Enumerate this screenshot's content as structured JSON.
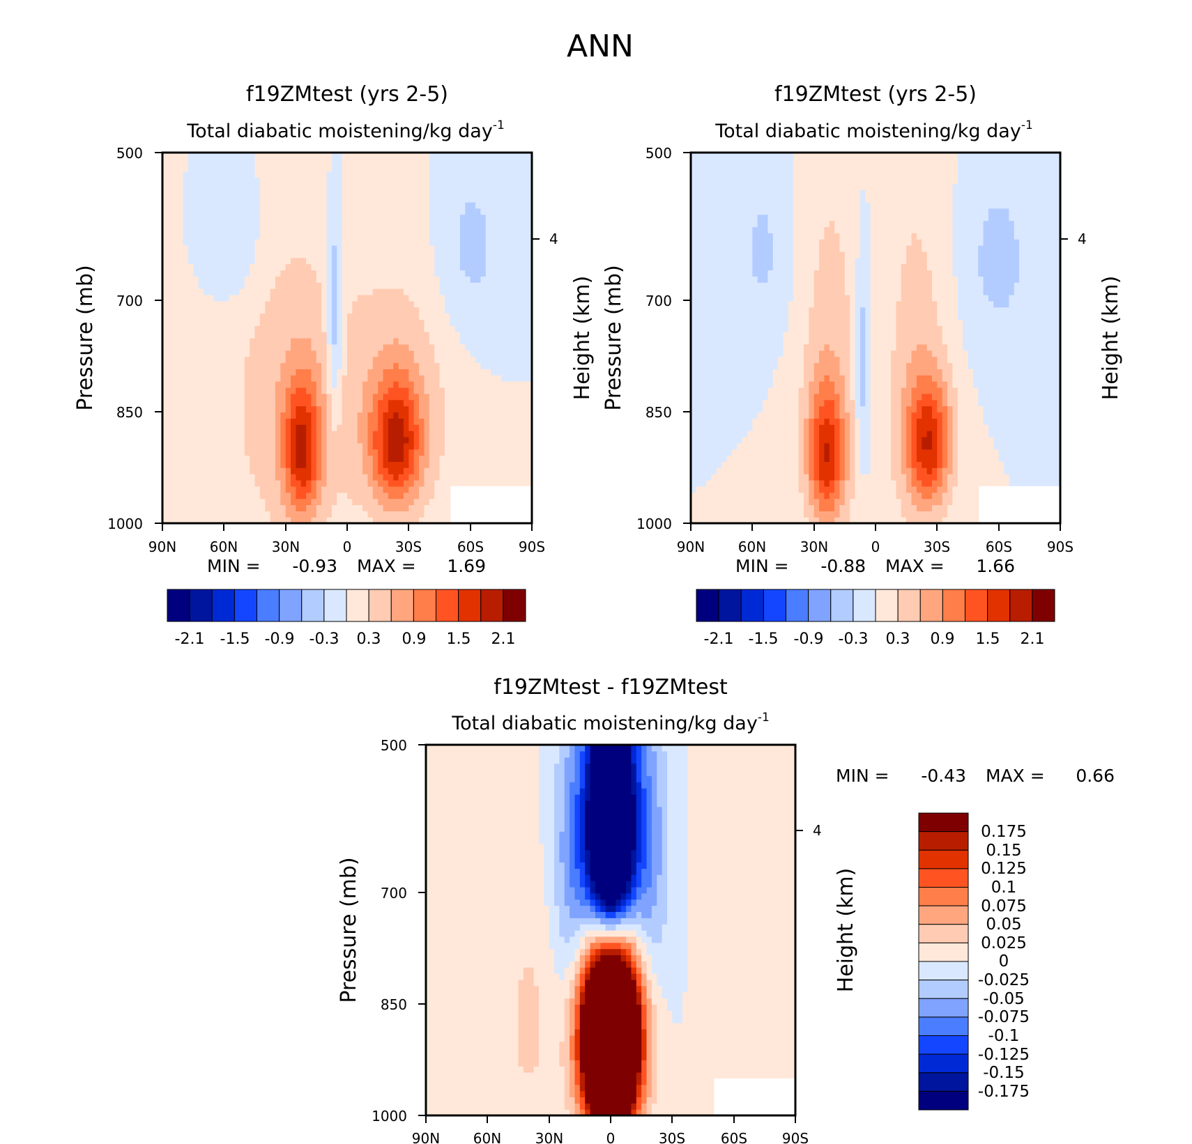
{
  "figure_title": "ANN",
  "colors": {
    "main_scale": [
      "#00007f",
      "#00159e",
      "#0029d6",
      "#1446ff",
      "#4a7dff",
      "#7fa3ff",
      "#b2ccff",
      "#d9e8ff",
      "#ffe8d9",
      "#ffcbb2",
      "#ffa67f",
      "#ff7e4a",
      "#ff5422",
      "#e23200",
      "#b81d00",
      "#7f0000"
    ],
    "diff_scale": [
      "#00007f",
      "#00159e",
      "#0029d6",
      "#1446ff",
      "#4a7dff",
      "#7fa3ff",
      "#b2ccff",
      "#d9e8ff",
      "#ffe8d9",
      "#ffcbb2",
      "#ffa67f",
      "#ff7e4a",
      "#ff5422",
      "#e23200",
      "#b81d00",
      "#7f0000"
    ]
  },
  "chart_data": [
    {
      "type": "heatmap",
      "id": "panel1",
      "title": "f19ZMtest (yrs 2-5)",
      "subtitle": "Total diabatic moistening/kg day",
      "subtitle_exponent": "-1",
      "ylabel": "Pressure (mb)",
      "y2label": "Height (km)",
      "y_ticks": [
        "500",
        "700",
        "850",
        "1000"
      ],
      "y_range": [
        1000,
        500
      ],
      "y2_ticks": [
        "4"
      ],
      "x_ticks": [
        "90N",
        "60N",
        "30N",
        "0",
        "30S",
        "60S",
        "90S"
      ],
      "x_range": [
        90,
        -90
      ],
      "stats": {
        "min_label": "MIN =",
        "min": "-0.93",
        "max_label": "MAX =",
        "max": "1.69"
      },
      "colorbar_labels": [
        "-2.1",
        "-1.5",
        "-0.9",
        "-0.3",
        "0.3",
        "0.9",
        "1.5",
        "2.1"
      ],
      "levels": [
        -2.1,
        -1.8,
        -1.5,
        -1.2,
        -0.9,
        -0.6,
        -0.3,
        0,
        0.3,
        0.6,
        0.9,
        1.2,
        1.5,
        1.8,
        2.1
      ],
      "features": [
        {
          "lat": 22,
          "p": 870,
          "dlat": 9,
          "dp": 110,
          "value": 1.5
        },
        {
          "lat": -24,
          "p": 860,
          "dlat": 12,
          "dp": 100,
          "value": 1.55
        },
        {
          "lat": 28,
          "p": 800,
          "dlat": 32,
          "dp": 260,
          "value": 0.5
        },
        {
          "lat": -26,
          "p": 800,
          "dlat": 28,
          "dp": 200,
          "value": 0.5
        },
        {
          "lat": 6,
          "p": 680,
          "dlat": 4,
          "dp": 140,
          "value": -0.75
        },
        {
          "lat": 55,
          "p": 580,
          "dlat": 14,
          "dp": 80,
          "value": -0.4
        },
        {
          "lat": -60,
          "p": 600,
          "dlat": 18,
          "dp": 110,
          "value": -0.4
        }
      ]
    },
    {
      "type": "heatmap",
      "id": "panel2",
      "title": "f19ZMtest (yrs 2-5)",
      "subtitle": "Total diabatic moistening/kg day",
      "subtitle_exponent": "-1",
      "ylabel": "Pressure (mb)",
      "y2label": "Height (km)",
      "y_ticks": [
        "500",
        "700",
        "850",
        "1000"
      ],
      "y_range": [
        1000,
        500
      ],
      "y2_ticks": [
        "4"
      ],
      "x_ticks": [
        "90N",
        "60N",
        "30N",
        "0",
        "30S",
        "60S",
        "90S"
      ],
      "x_range": [
        90,
        -90
      ],
      "stats": {
        "min_label": "MIN =",
        "min": "-0.88",
        "max_label": "MAX =",
        "max": "1.66"
      },
      "colorbar_labels": [
        "-2.1",
        "-1.5",
        "-0.9",
        "-0.3",
        "0.3",
        "0.9",
        "1.5",
        "2.1"
      ],
      "levels": [
        -2.1,
        -1.8,
        -1.5,
        -1.2,
        -0.9,
        -0.6,
        -0.3,
        0,
        0.3,
        0.6,
        0.9,
        1.2,
        1.5,
        1.8,
        2.1
      ],
      "features": [
        {
          "lat": 24,
          "p": 880,
          "dlat": 9,
          "dp": 110,
          "value": 1.45
        },
        {
          "lat": -26,
          "p": 860,
          "dlat": 11,
          "dp": 100,
          "value": 1.5
        },
        {
          "lat": 22,
          "p": 760,
          "dlat": 16,
          "dp": 300,
          "value": 0.45
        },
        {
          "lat": -20,
          "p": 760,
          "dlat": 16,
          "dp": 280,
          "value": 0.45
        },
        {
          "lat": 6,
          "p": 740,
          "dlat": 4,
          "dp": 160,
          "value": -0.6
        },
        {
          "lat": 55,
          "p": 600,
          "dlat": 14,
          "dp": 100,
          "value": -0.35
        },
        {
          "lat": -60,
          "p": 610,
          "dlat": 18,
          "dp": 110,
          "value": -0.4
        }
      ]
    },
    {
      "type": "heatmap",
      "id": "panel3",
      "title": "f19ZMtest - f19ZMtest",
      "subtitle": "Total diabatic moistening/kg day",
      "subtitle_exponent": "-1",
      "ylabel": "Pressure (mb)",
      "y2label": "Height (km)",
      "y_ticks": [
        "500",
        "700",
        "850",
        "1000"
      ],
      "y_range": [
        1000,
        500
      ],
      "y2_ticks": [
        "4"
      ],
      "x_ticks": [
        "90N",
        "60N",
        "30N",
        "0",
        "30S",
        "60S",
        "90S"
      ],
      "x_range": [
        90,
        -90
      ],
      "stats": {
        "min_label": "MIN =",
        "min": "-0.43",
        "max_label": "MAX =",
        "max": "0.66"
      },
      "colorbar_labels": [
        "0.175",
        "0.15",
        "0.125",
        "0.1",
        "0.075",
        "0.05",
        "0.025",
        "0",
        "-0.025",
        "-0.05",
        "-0.075",
        "-0.1",
        "-0.125",
        "-0.15",
        "-0.175"
      ],
      "levels": [
        -0.175,
        -0.15,
        -0.125,
        -0.1,
        -0.075,
        -0.05,
        -0.025,
        0,
        0.025,
        0.05,
        0.075,
        0.1,
        0.125,
        0.15,
        0.175
      ],
      "features": [
        {
          "lat": 0,
          "p": 590,
          "dlat": 11,
          "dp": 150,
          "value": -0.43
        },
        {
          "lat": 0,
          "p": 860,
          "dlat": 13,
          "dp": 150,
          "value": 0.66
        },
        {
          "lat": 18,
          "p": 620,
          "dlat": 10,
          "dp": 170,
          "value": -0.07
        },
        {
          "lat": -18,
          "p": 610,
          "dlat": 10,
          "dp": 170,
          "value": -0.07
        },
        {
          "lat": 40,
          "p": 840,
          "dlat": 14,
          "dp": 200,
          "value": 0.03
        },
        {
          "lat": -55,
          "p": 700,
          "dlat": 10,
          "dp": 260,
          "value": 0.02
        }
      ]
    }
  ]
}
